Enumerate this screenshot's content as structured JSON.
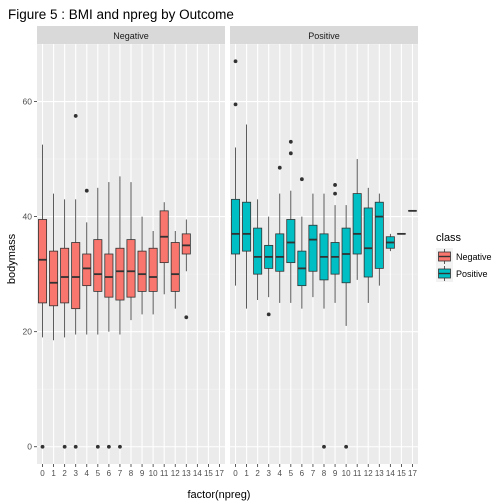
{
  "chart_data": {
    "type": "boxplot",
    "title": "Figure 5 : BMI and npreg by Outcome",
    "xlabel": "factor(npreg)",
    "ylabel": "bodymass",
    "ylim": [
      -3,
      70
    ],
    "y_ticks": [
      0,
      20,
      40,
      60
    ],
    "categories": [
      "0",
      "1",
      "2",
      "3",
      "4",
      "5",
      "6",
      "7",
      "8",
      "9",
      "10",
      "11",
      "12",
      "13",
      "14",
      "15",
      "17"
    ],
    "grid": true,
    "legend": {
      "title": "class",
      "position": "right",
      "items": [
        {
          "label": "Negative",
          "color": "#F8766D"
        },
        {
          "label": "Positive",
          "color": "#00BFC4"
        }
      ]
    },
    "panels": [
      {
        "label": "Negative",
        "color": "#F8766D",
        "boxes": [
          {
            "cat": "0",
            "lo": 19.0,
            "q1": 25.0,
            "med": 32.5,
            "q3": 39.5,
            "hi": 52.5,
            "out": [
              0
            ]
          },
          {
            "cat": "1",
            "lo": 18.5,
            "q1": 24.5,
            "med": 28.5,
            "q3": 34.0,
            "hi": 44.0,
            "out": []
          },
          {
            "cat": "2",
            "lo": 19.0,
            "q1": 25.0,
            "med": 29.5,
            "q3": 34.5,
            "hi": 43.0,
            "out": [
              0
            ]
          },
          {
            "cat": "3",
            "lo": 19.5,
            "q1": 24.0,
            "med": 29.5,
            "q3": 35.5,
            "hi": 43.0,
            "out": [
              57.5,
              0
            ]
          },
          {
            "cat": "4",
            "lo": 19.5,
            "q1": 28.0,
            "med": 31.0,
            "q3": 33.5,
            "hi": 39.0,
            "out": [
              44.5
            ]
          },
          {
            "cat": "5",
            "lo": 19.5,
            "q1": 27.0,
            "med": 30.0,
            "q3": 36.0,
            "hi": 45.0,
            "out": [
              0
            ]
          },
          {
            "cat": "6",
            "lo": 20.0,
            "q1": 26.0,
            "med": 29.5,
            "q3": 33.5,
            "hi": 46.0,
            "out": [
              0
            ]
          },
          {
            "cat": "7",
            "lo": 19.5,
            "q1": 25.5,
            "med": 30.5,
            "q3": 34.5,
            "hi": 47.0,
            "out": [
              0
            ]
          },
          {
            "cat": "8",
            "lo": 22.0,
            "q1": 26.0,
            "med": 30.5,
            "q3": 36.0,
            "hi": 46.0,
            "out": []
          },
          {
            "cat": "9",
            "lo": 23.0,
            "q1": 27.0,
            "med": 30.0,
            "q3": 34.0,
            "hi": 40.0,
            "out": []
          },
          {
            "cat": "10",
            "lo": 23.0,
            "q1": 27.0,
            "med": 29.5,
            "q3": 34.5,
            "hi": 37.5,
            "out": []
          },
          {
            "cat": "11",
            "lo": 26.5,
            "q1": 32.0,
            "med": 36.5,
            "q3": 41.0,
            "hi": 42.5,
            "out": []
          },
          {
            "cat": "12",
            "lo": 24.0,
            "q1": 27.0,
            "med": 30.0,
            "q3": 35.5,
            "hi": 37.5,
            "out": []
          },
          {
            "cat": "13",
            "lo": 30.5,
            "q1": 33.5,
            "med": 35.0,
            "q3": 37.0,
            "hi": 39.5,
            "out": [
              22.5
            ]
          }
        ]
      },
      {
        "label": "Positive",
        "color": "#00BFC4",
        "boxes": [
          {
            "cat": "0",
            "lo": 28.0,
            "q1": 33.5,
            "med": 37.0,
            "q3": 43.0,
            "hi": 52.0,
            "out": [
              67.0,
              59.5
            ]
          },
          {
            "cat": "1",
            "lo": 24.0,
            "q1": 34.0,
            "med": 37.0,
            "q3": 42.5,
            "hi": 56.0,
            "out": []
          },
          {
            "cat": "2",
            "lo": 25.5,
            "q1": 30.0,
            "med": 33.0,
            "q3": 38.0,
            "hi": 43.0,
            "out": []
          },
          {
            "cat": "3",
            "lo": 26.0,
            "q1": 31.0,
            "med": 33.0,
            "q3": 35.0,
            "hi": 40.0,
            "out": [
              23.0
            ]
          },
          {
            "cat": "4",
            "lo": 25.0,
            "q1": 30.5,
            "med": 33.0,
            "q3": 37.0,
            "hi": 44.0,
            "out": [
              48.5
            ]
          },
          {
            "cat": "5",
            "lo": 25.0,
            "q1": 32.0,
            "med": 35.5,
            "q3": 39.5,
            "hi": 44.5,
            "out": [
              53.0,
              51.0
            ]
          },
          {
            "cat": "6",
            "lo": 24.0,
            "q1": 28.0,
            "med": 31.0,
            "q3": 34.0,
            "hi": 40.0,
            "out": [
              46.5
            ]
          },
          {
            "cat": "7",
            "lo": 26.0,
            "q1": 30.5,
            "med": 36.0,
            "q3": 38.5,
            "hi": 44.0,
            "out": []
          },
          {
            "cat": "8",
            "lo": 24.0,
            "q1": 29.0,
            "med": 33.0,
            "q3": 37.0,
            "hi": 44.0,
            "out": [
              0
            ]
          },
          {
            "cat": "9",
            "lo": 25.0,
            "q1": 30.0,
            "med": 33.0,
            "q3": 35.5,
            "hi": 42.0,
            "out": [
              45.5,
              44.0
            ]
          },
          {
            "cat": "10",
            "lo": 21.0,
            "q1": 28.5,
            "med": 33.5,
            "q3": 38.0,
            "hi": 42.0,
            "out": [
              0
            ]
          },
          {
            "cat": "11",
            "lo": 29.0,
            "q1": 33.5,
            "med": 37.0,
            "q3": 44.0,
            "hi": 50.0,
            "out": []
          },
          {
            "cat": "12",
            "lo": 25.0,
            "q1": 29.5,
            "med": 34.5,
            "q3": 41.5,
            "hi": 45.0,
            "out": []
          },
          {
            "cat": "13",
            "lo": 28.0,
            "q1": 31.0,
            "med": 40.0,
            "q3": 42.5,
            "hi": 44.0,
            "out": []
          },
          {
            "cat": "14",
            "lo": 34.0,
            "q1": 34.5,
            "med": 35.5,
            "q3": 36.5,
            "hi": 37.0,
            "out": []
          },
          {
            "cat": "15",
            "lo": 37.0,
            "q1": 37.0,
            "med": 37.0,
            "q3": 37.0,
            "hi": 37.0,
            "out": []
          },
          {
            "cat": "17",
            "lo": 41.0,
            "q1": 41.0,
            "med": 41.0,
            "q3": 41.0,
            "hi": 41.0,
            "out": []
          }
        ]
      }
    ]
  }
}
